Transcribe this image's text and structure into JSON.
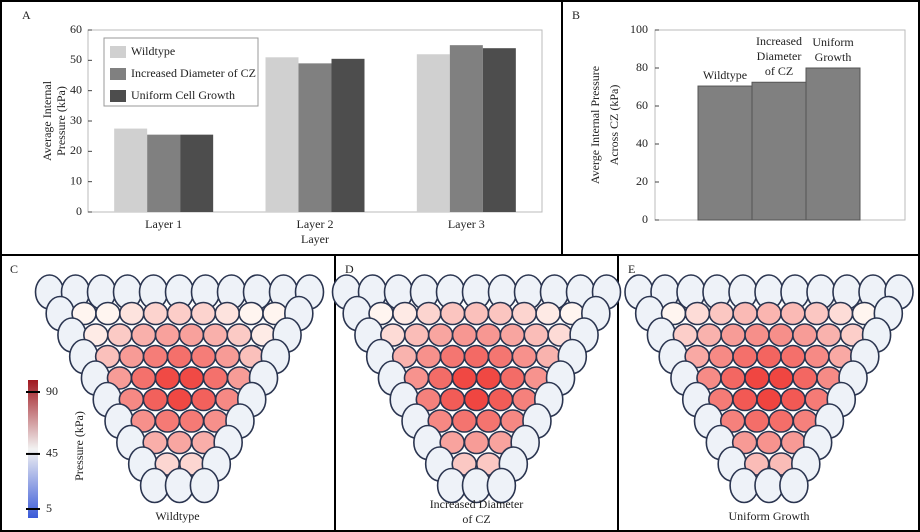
{
  "chart_data": [
    {
      "panel": "A",
      "type": "bar",
      "categories": [
        "Layer 1",
        "Layer 2",
        "Layer 3"
      ],
      "series": [
        {
          "name": "Wildtype",
          "color": "#d0d0d0",
          "values": [
            27.5,
            51,
            52
          ]
        },
        {
          "name": "Increased Diameter of CZ",
          "color": "#808080",
          "values": [
            25.5,
            49,
            55
          ]
        },
        {
          "name": "Uniform Cell Growth",
          "color": "#4d4d4d",
          "values": [
            25.5,
            50.5,
            54
          ]
        }
      ],
      "x_label": "Layer",
      "y_label": [
        "Average Internal",
        "Pressure (kPa)"
      ],
      "ylim": [
        0,
        60
      ],
      "yticks": [
        0,
        10,
        20,
        30,
        40,
        50,
        60
      ],
      "legend": "upper-left"
    },
    {
      "panel": "B",
      "type": "bar",
      "categories": [
        [
          "Wildtype"
        ],
        [
          "Increased",
          "Diameter",
          "of CZ"
        ],
        [
          "Uniform",
          "Growth"
        ]
      ],
      "values": [
        70.5,
        72.5,
        80
      ],
      "color": "#808080",
      "y_label": [
        "Averge Internal Pressure",
        "Across CZ (kPa)"
      ],
      "ylim": [
        0,
        100
      ],
      "yticks": [
        0,
        20,
        40,
        60,
        80,
        100
      ]
    }
  ],
  "panels": [
    {
      "letter": "C",
      "caption": [
        "Wildtype"
      ]
    },
    {
      "letter": "D",
      "caption": [
        "Increased Diameter",
        "of CZ"
      ]
    },
    {
      "letter": "E",
      "caption": [
        "Uniform Growth"
      ]
    }
  ],
  "colorbar": {
    "label": "Pressure (kPa)",
    "ticks": [
      5,
      45,
      90
    ],
    "lim": [
      5,
      90
    ]
  }
}
